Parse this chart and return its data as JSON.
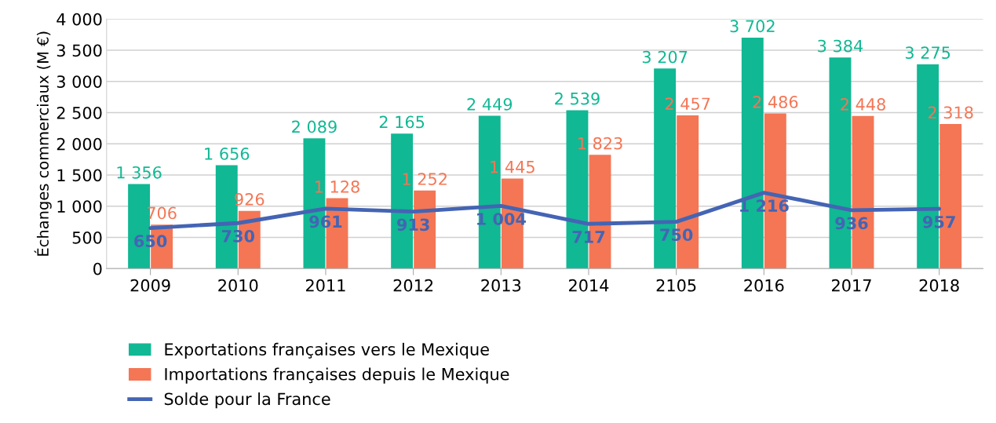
{
  "chart_data": {
    "type": "bar",
    "ylabel": "Échanges commerciaux (M €)",
    "categories": [
      "2009",
      "2010",
      "2011",
      "2012",
      "2013",
      "2014",
      "2105",
      "2016",
      "2017",
      "2018"
    ],
    "series": [
      {
        "name": "Exportations françaises vers le Mexique",
        "color": "#10b894",
        "values": [
          1356,
          1656,
          2089,
          2165,
          2449,
          2539,
          3207,
          3702,
          3384,
          3275
        ],
        "value_labels": [
          "1 356",
          "1 656",
          "2 089",
          "2 165",
          "2 449",
          "2 539",
          "3 207",
          "3 702",
          "3 384",
          "3 275"
        ]
      },
      {
        "name": "Importations françaises depuis le Mexique",
        "color": "#f47655",
        "values": [
          706,
          926,
          1128,
          1252,
          1445,
          1823,
          2457,
          2486,
          2448,
          2318
        ],
        "value_labels": [
          "706",
          "926",
          "1 128",
          "1 252",
          "1 445",
          "1 823",
          "2 457",
          "2 486",
          "2 448",
          "2 318"
        ]
      },
      {
        "name": "Solde pour la France",
        "type": "line",
        "color": "#4464b4",
        "values": [
          650,
          730,
          961,
          913,
          1004,
          717,
          750,
          1216,
          936,
          957
        ],
        "value_labels": [
          "650",
          "730",
          "961",
          "913",
          "1 004",
          "717",
          "750",
          "1 216",
          "936",
          "957"
        ]
      }
    ],
    "ylim": [
      0,
      4000
    ],
    "yticks": [
      0,
      500,
      {
        "value": 1000,
        "label": "1 000"
      },
      {
        "value": 1500,
        "label": "1 500"
      },
      {
        "value": 2000,
        "label": "2 000"
      },
      {
        "value": 2500,
        "label": "2 500"
      },
      {
        "value": 3000,
        "label": "3 000"
      },
      {
        "value": 3500,
        "label": "3 500"
      },
      {
        "value": 4000,
        "label": "4 000"
      }
    ],
    "grid": "y",
    "legend": "bottom left"
  }
}
